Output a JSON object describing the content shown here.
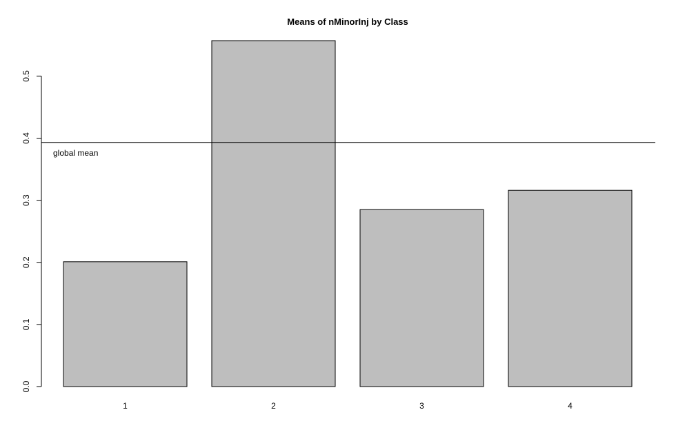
{
  "chart_data": {
    "type": "bar",
    "title": "Means of nMinorInj by Class",
    "xlabel": "",
    "ylabel": "",
    "categories": [
      "1",
      "2",
      "3",
      "4"
    ],
    "values": [
      0.201,
      0.557,
      0.285,
      0.316
    ],
    "ylim": [
      0,
      0.557
    ],
    "yticks": [
      0.0,
      0.1,
      0.2,
      0.3,
      0.4,
      0.5
    ],
    "ytick_labels": [
      "0.0",
      "0.1",
      "0.2",
      "0.3",
      "0.4",
      "0.5"
    ],
    "reference_line": {
      "value": 0.393,
      "label": "global mean"
    },
    "bar_color": "#bebebe",
    "grid": false,
    "legend": "none"
  }
}
